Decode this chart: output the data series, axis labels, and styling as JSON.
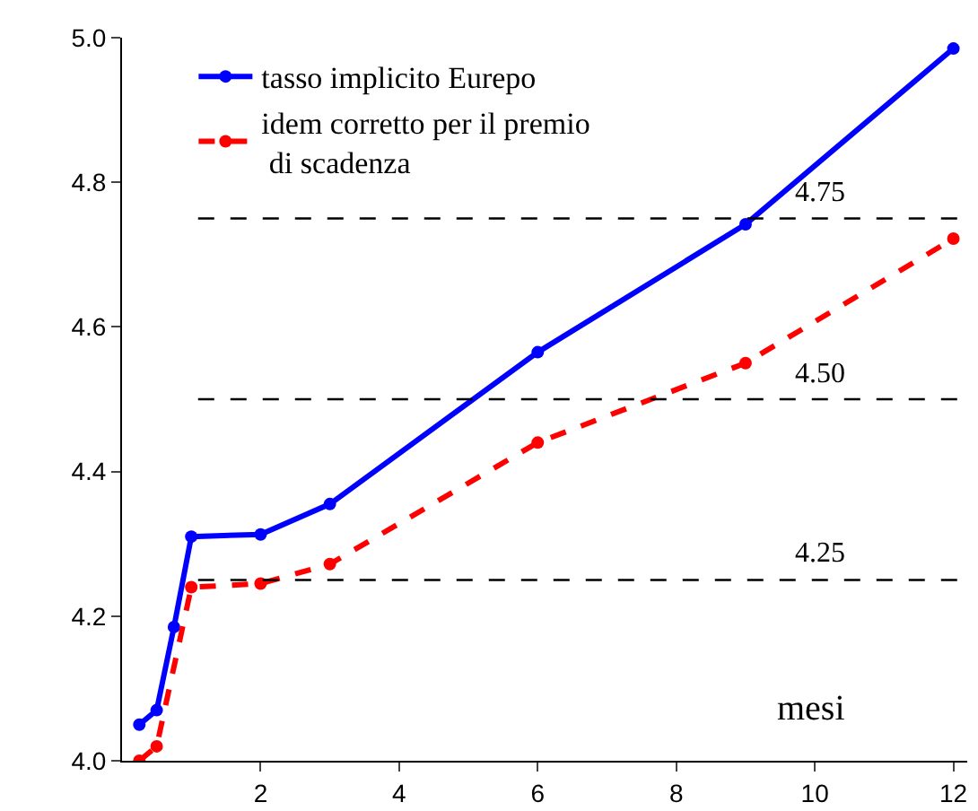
{
  "chart_data": {
    "type": "line",
    "xlabel": "mesi",
    "x": [
      0.25,
      0.5,
      0.75,
      1,
      2,
      3,
      6,
      9,
      12
    ],
    "series": [
      {
        "name": "tasso implicito Eurepo",
        "color": "#0000ff",
        "values": [
          4.05,
          4.07,
          4.185,
          4.31,
          4.313,
          4.355,
          4.565,
          4.742,
          4.985
        ]
      },
      {
        "name": "idem corretto per il premio\n di scadenza",
        "color": "#ff0000",
        "line_style": "dashed",
        "x": [
          0.25,
          0.5,
          1,
          2,
          3,
          6,
          9,
          12
        ],
        "values": [
          4.0,
          4.02,
          4.24,
          4.245,
          4.272,
          4.44,
          4.55,
          4.722
        ]
      }
    ],
    "xlim": [
      0,
      12.2
    ],
    "xticks": [
      2,
      4,
      6,
      8,
      10,
      12
    ],
    "ylim": [
      4.0,
      5.0
    ],
    "yticks": [
      {
        "value": 4.0,
        "label": "4.0"
      },
      {
        "value": 4.2,
        "label": "4.2"
      },
      {
        "value": 4.4,
        "label": "4.4"
      },
      {
        "value": 4.6,
        "label": "4.6"
      },
      {
        "value": 4.8,
        "label": "4.8"
      },
      {
        "value": 5.0,
        "label": "5.0"
      }
    ],
    "ref_lines": [
      {
        "axis": "y",
        "value": 4.75,
        "label": "4.75",
        "color": "#000000",
        "line_style": "dashed"
      },
      {
        "axis": "y",
        "value": 4.5,
        "label": "4.50",
        "color": "#000000",
        "line_style": "dashed"
      },
      {
        "axis": "y",
        "value": 4.25,
        "label": "4.25",
        "color": "#000000",
        "line_style": "dashed"
      }
    ],
    "grid": false,
    "legend": "top left",
    "marker": "circle",
    "line_style": "solid"
  }
}
